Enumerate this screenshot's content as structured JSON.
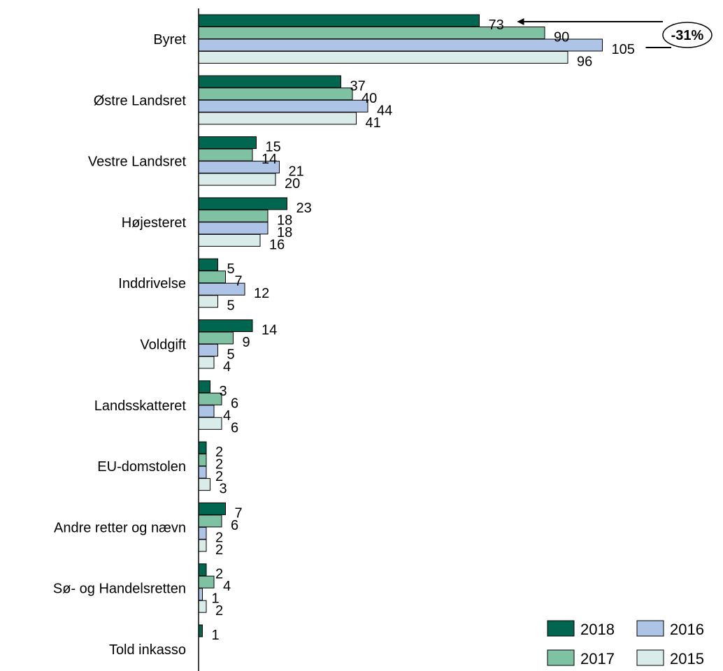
{
  "chart_data": {
    "type": "bar",
    "orientation": "horizontal",
    "categories": [
      "Byret",
      "Østre Landsret",
      "Vestre Landsret",
      "Højesteret",
      "Inddrivelse",
      "Voldgift",
      "Landsskatteret",
      "EU-domstolen",
      "Andre retter og nævn",
      "Sø- og Handelsretten",
      "Told inkasso"
    ],
    "series": [
      {
        "name": "2018",
        "color": "#00664f",
        "values": [
          73,
          37,
          15,
          23,
          5,
          14,
          3,
          2,
          7,
          2,
          1
        ]
      },
      {
        "name": "2017",
        "color": "#7fc1a3",
        "values": [
          90,
          40,
          14,
          18,
          7,
          9,
          6,
          2,
          6,
          4,
          null
        ]
      },
      {
        "name": "2016",
        "color": "#aec4e6",
        "values": [
          105,
          44,
          21,
          18,
          12,
          5,
          4,
          2,
          2,
          1,
          null
        ]
      },
      {
        "name": "2015",
        "color": "#d9ece9",
        "values": [
          96,
          41,
          20,
          16,
          5,
          4,
          6,
          3,
          2,
          2,
          null
        ]
      }
    ],
    "xlim": [
      0,
      105
    ],
    "grid": false,
    "legend": {
      "placement": "bottom-right",
      "order": [
        "2018",
        "2016",
        "2017",
        "2015"
      ]
    },
    "annotation": {
      "text": "-31%",
      "from_series": "2016",
      "to_series": "2018",
      "category": "Byret"
    }
  }
}
